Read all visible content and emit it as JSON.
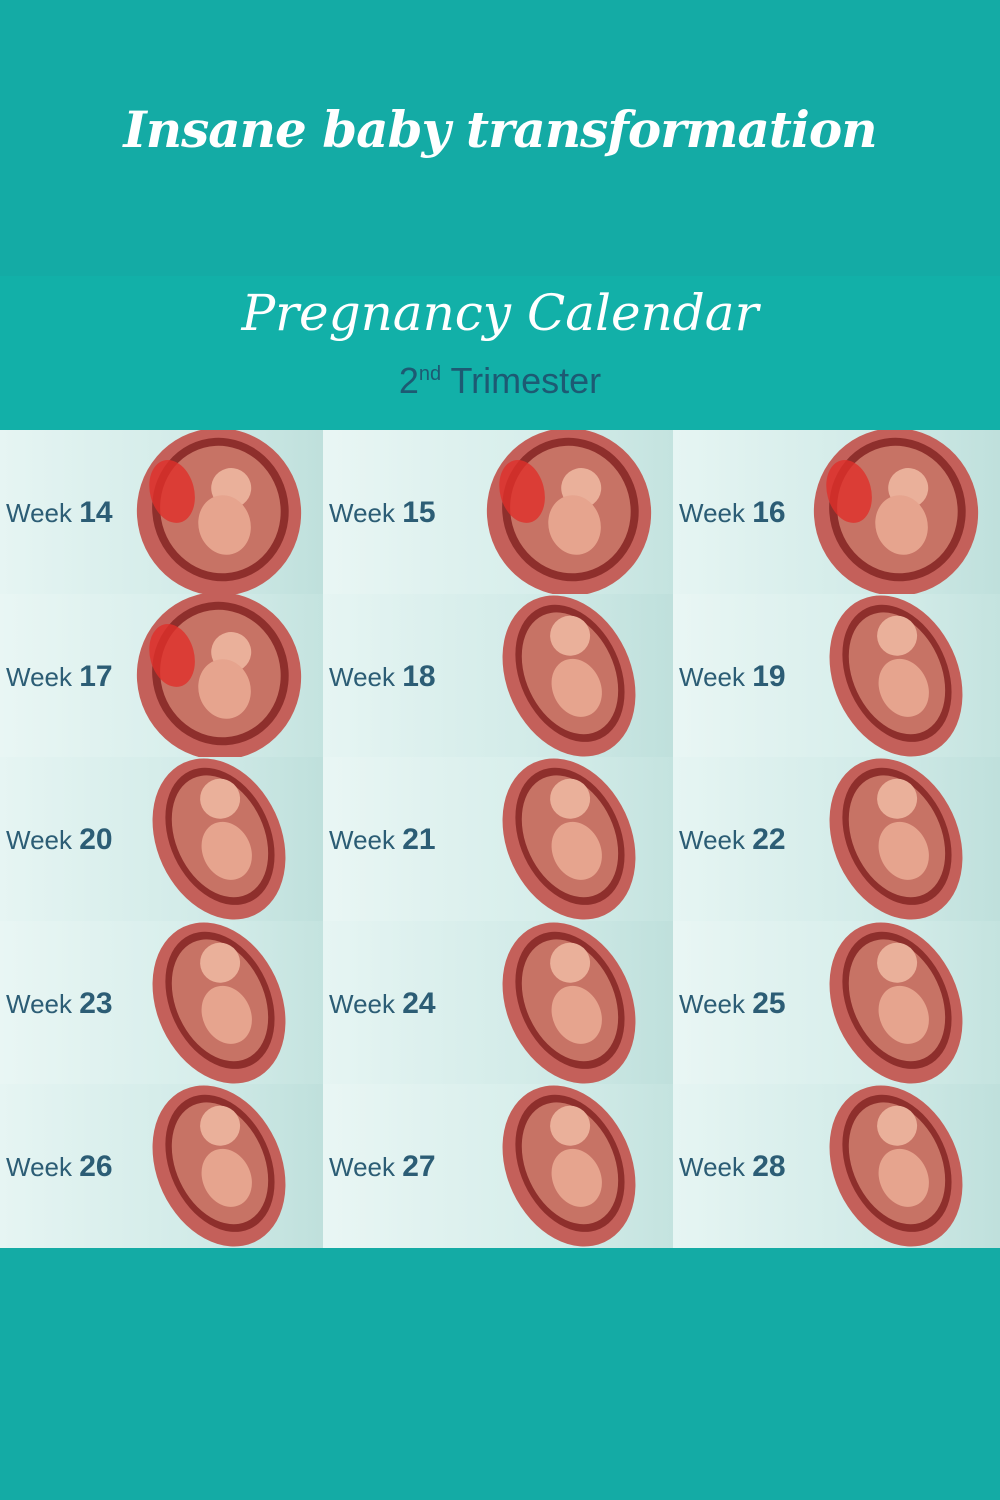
{
  "headline": "Insane baby transformation",
  "calendar": {
    "title": "Pregnancy Calendar",
    "trimester_ordinal": "2",
    "trimester_suffix": "nd",
    "trimester_label": "Trimester"
  },
  "week_word": "Week",
  "weeks": [
    "14",
    "15",
    "16",
    "17",
    "18",
    "19",
    "20",
    "21",
    "22",
    "23",
    "24",
    "25",
    "26",
    "27",
    "28"
  ],
  "colors": {
    "background": "#14aba5",
    "banner": "#12b0a8",
    "label": "#2c5d75",
    "uterus": "#c4605a"
  }
}
